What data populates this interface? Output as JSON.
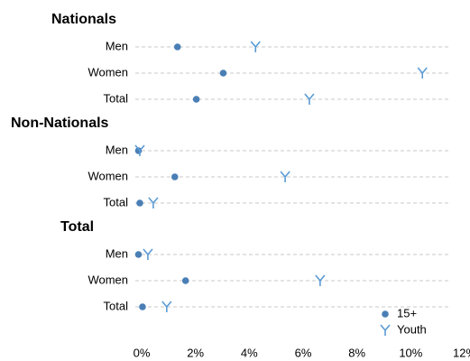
{
  "chart_data": {
    "type": "dot",
    "groups": [
      {
        "name": "Nationals",
        "categories": [
          "Men",
          "Women",
          "Total"
        ]
      },
      {
        "name": "Non-Nationals",
        "categories": [
          "Men",
          "Women",
          "Total"
        ]
      },
      {
        "name": "Total",
        "categories": [
          "Men",
          "Women",
          "Total"
        ]
      }
    ],
    "series": [
      {
        "name": "15+",
        "color": "#4a7fb5",
        "marker": "circle",
        "values": [
          1.5,
          3.2,
          2.2,
          0.05,
          1.4,
          0.1,
          0.05,
          1.8,
          0.2
        ]
      },
      {
        "name": "Youth",
        "color": "#5b9bd5",
        "marker": "Y",
        "values": [
          4.4,
          10.6,
          6.4,
          0.1,
          5.5,
          0.6,
          0.4,
          6.8,
          1.1
        ]
      }
    ],
    "xlim": [
      0,
      12
    ],
    "xticks": [
      {
        "value": 0,
        "label": "0%"
      },
      {
        "value": 2,
        "label": "2%"
      },
      {
        "value": 4,
        "label": "4%"
      },
      {
        "value": 6,
        "label": "6%"
      },
      {
        "value": 8,
        "label": "8%"
      },
      {
        "value": 10,
        "label": "10%"
      },
      {
        "value": 12,
        "label": "12%"
      }
    ],
    "grid": true,
    "legend": "lower right"
  }
}
